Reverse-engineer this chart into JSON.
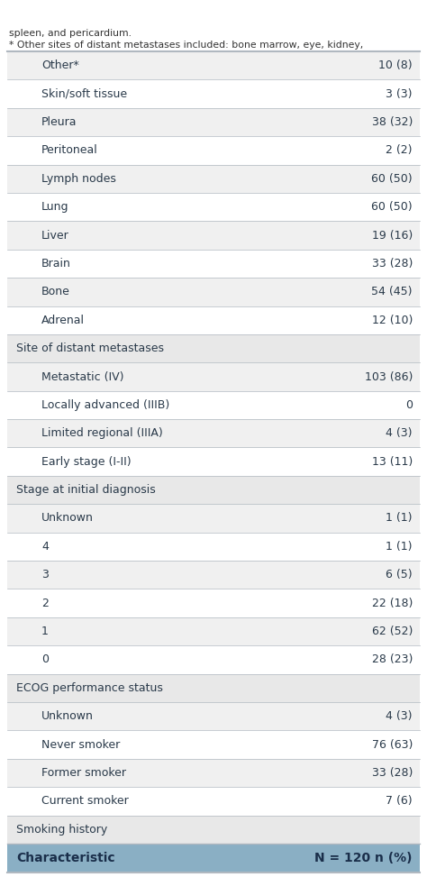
{
  "header": [
    "Characteristic",
    "N = 120 n (%)"
  ],
  "rows": [
    {
      "label": "Smoking history",
      "value": "",
      "indent": 0,
      "section": true
    },
    {
      "label": "Current smoker",
      "value": "7 (6)",
      "indent": 1,
      "section": false
    },
    {
      "label": "Former smoker",
      "value": "33 (28)",
      "indent": 1,
      "section": false
    },
    {
      "label": "Never smoker",
      "value": "76 (63)",
      "indent": 1,
      "section": false
    },
    {
      "label": "Unknown",
      "value": "4 (3)",
      "indent": 1,
      "section": false
    },
    {
      "label": "ECOG performance status",
      "value": "",
      "indent": 0,
      "section": true
    },
    {
      "label": "0",
      "value": "28 (23)",
      "indent": 1,
      "section": false
    },
    {
      "label": "1",
      "value": "62 (52)",
      "indent": 1,
      "section": false
    },
    {
      "label": "2",
      "value": "22 (18)",
      "indent": 1,
      "section": false
    },
    {
      "label": "3",
      "value": "6 (5)",
      "indent": 1,
      "section": false
    },
    {
      "label": "4",
      "value": "1 (1)",
      "indent": 1,
      "section": false
    },
    {
      "label": "Unknown",
      "value": "1 (1)",
      "indent": 1,
      "section": false
    },
    {
      "label": "Stage at initial diagnosis",
      "value": "",
      "indent": 0,
      "section": true
    },
    {
      "label": "Early stage (I-II)",
      "value": "13 (11)",
      "indent": 1,
      "section": false
    },
    {
      "label": "Limited regional (IIIA)",
      "value": "4 (3)",
      "indent": 1,
      "section": false
    },
    {
      "label": "Locally advanced (IIIB)",
      "value": "0",
      "indent": 1,
      "section": false
    },
    {
      "label": "Metastatic (IV)",
      "value": "103 (86)",
      "indent": 1,
      "section": false
    },
    {
      "label": "Site of distant metastases",
      "value": "",
      "indent": 0,
      "section": true
    },
    {
      "label": "Adrenal",
      "value": "12 (10)",
      "indent": 1,
      "section": false
    },
    {
      "label": "Bone",
      "value": "54 (45)",
      "indent": 1,
      "section": false
    },
    {
      "label": "Brain",
      "value": "33 (28)",
      "indent": 1,
      "section": false
    },
    {
      "label": "Liver",
      "value": "19 (16)",
      "indent": 1,
      "section": false
    },
    {
      "label": "Lung",
      "value": "60 (50)",
      "indent": 1,
      "section": false
    },
    {
      "label": "Lymph nodes",
      "value": "60 (50)",
      "indent": 1,
      "section": false
    },
    {
      "label": "Peritoneal",
      "value": "2 (2)",
      "indent": 1,
      "section": false
    },
    {
      "label": "Pleura",
      "value": "38 (32)",
      "indent": 1,
      "section": false
    },
    {
      "label": "Skin/soft tissue",
      "value": "3 (3)",
      "indent": 1,
      "section": false
    },
    {
      "label": "Other*",
      "value": "10 (8)",
      "indent": 1,
      "section": false
    }
  ],
  "footnote_line1": "* Other sites of distant metastases included: bone marrow, eye, kidney,",
  "footnote_line2": "spleen, and pericardium.",
  "header_bg": "#8aafc4",
  "header_text_color": "#1a2e4a",
  "section_bg": "#e8e8e8",
  "row_bg_alt": "#f0f0f0",
  "row_bg_white": "#ffffff",
  "border_color": "#b0b8c0",
  "text_color": "#2a3a4a",
  "font_size": 9.0,
  "header_font_size": 10.0
}
